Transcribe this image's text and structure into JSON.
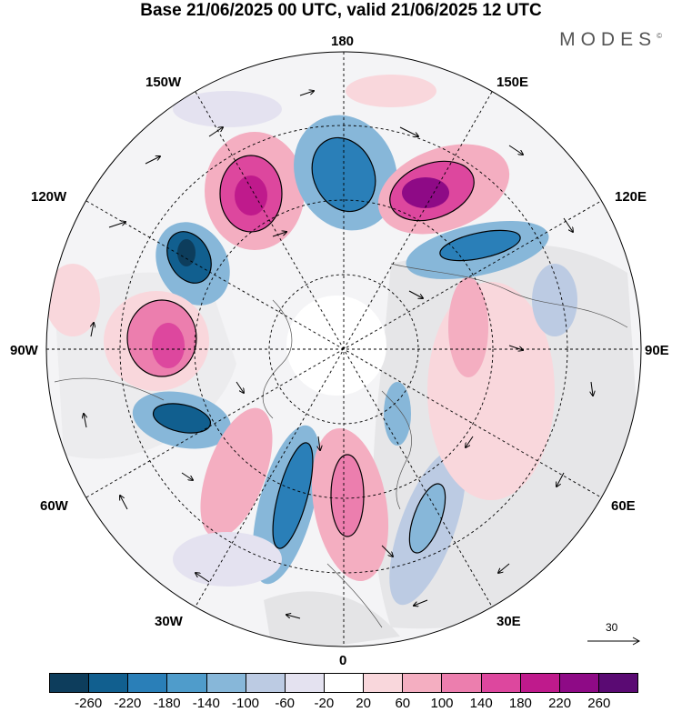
{
  "title": "Base 21/06/2025 00 UTC, valid 21/06/2025 12 UTC",
  "brand": "MODES",
  "brand_mark": "©",
  "lon_labels": {
    "top": "180",
    "bottom": "0",
    "left": "90W",
    "right": "90E",
    "upper_left": "150W",
    "upper_right": "150E",
    "mid_upper_left": "120W",
    "mid_upper_right": "120E",
    "mid_lower_left": "60W",
    "mid_lower_right": "60E",
    "lower_left": "30W",
    "lower_right": "30E"
  },
  "reference_vector": "30",
  "colorbar": {
    "labels": [
      "-260",
      "-220",
      "-180",
      "-140",
      "-100",
      "-60",
      "-20",
      "20",
      "60",
      "100",
      "140",
      "180",
      "220",
      "260"
    ],
    "colors": [
      "#0d3d5c",
      "#115f8f",
      "#2a7fb8",
      "#4f9ccb",
      "#87b7d9",
      "#bccbe3",
      "#e4e2f0",
      "#ffffff",
      "#f9d7dc",
      "#f4aec1",
      "#ec7eae",
      "#dd479e",
      "#bf1a8c",
      "#8e0a86",
      "#5a0a73"
    ]
  }
}
